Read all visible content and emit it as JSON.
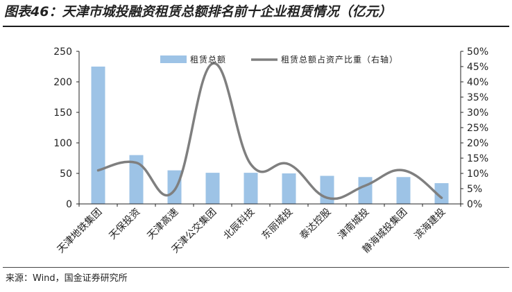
{
  "header": {
    "title": "图表46：天津市城投融资租赁总额排名前十企业租赁情况（亿元）"
  },
  "footer": {
    "source": "来源：Wind，国金证券研究所"
  },
  "chart_data": {
    "type": "bar",
    "title": "",
    "categories": [
      "天津地铁集团",
      "天保投资",
      "天津高速",
      "天津公交集团",
      "北辰科技",
      "东丽城投",
      "泰达控股",
      "津南城投",
      "静海城投集团",
      "滨海建投"
    ],
    "series": [
      {
        "name": "租赁总额",
        "type": "bar",
        "axis": "left",
        "color": "#9dc3e6",
        "values": [
          225,
          80,
          55,
          51,
          51,
          50,
          46,
          44,
          44,
          34
        ]
      },
      {
        "name": "租赁总额占资产比重（右轴）",
        "type": "line",
        "axis": "right",
        "color": "#7f7f7f",
        "values": [
          11,
          13.5,
          4.5,
          46,
          13,
          13,
          2,
          6,
          11,
          2
        ]
      }
    ],
    "y_left": {
      "min": 0,
      "max": 250,
      "ticks": [
        "0",
        "50",
        "100",
        "150",
        "200",
        "250"
      ]
    },
    "y_right": {
      "min": 0,
      "max": 50,
      "ticks": [
        "0%",
        "5%",
        "10%",
        "15%",
        "20%",
        "25%",
        "30%",
        "35%",
        "40%",
        "45%",
        "50%"
      ]
    },
    "legend_position": "top",
    "grid": false
  }
}
